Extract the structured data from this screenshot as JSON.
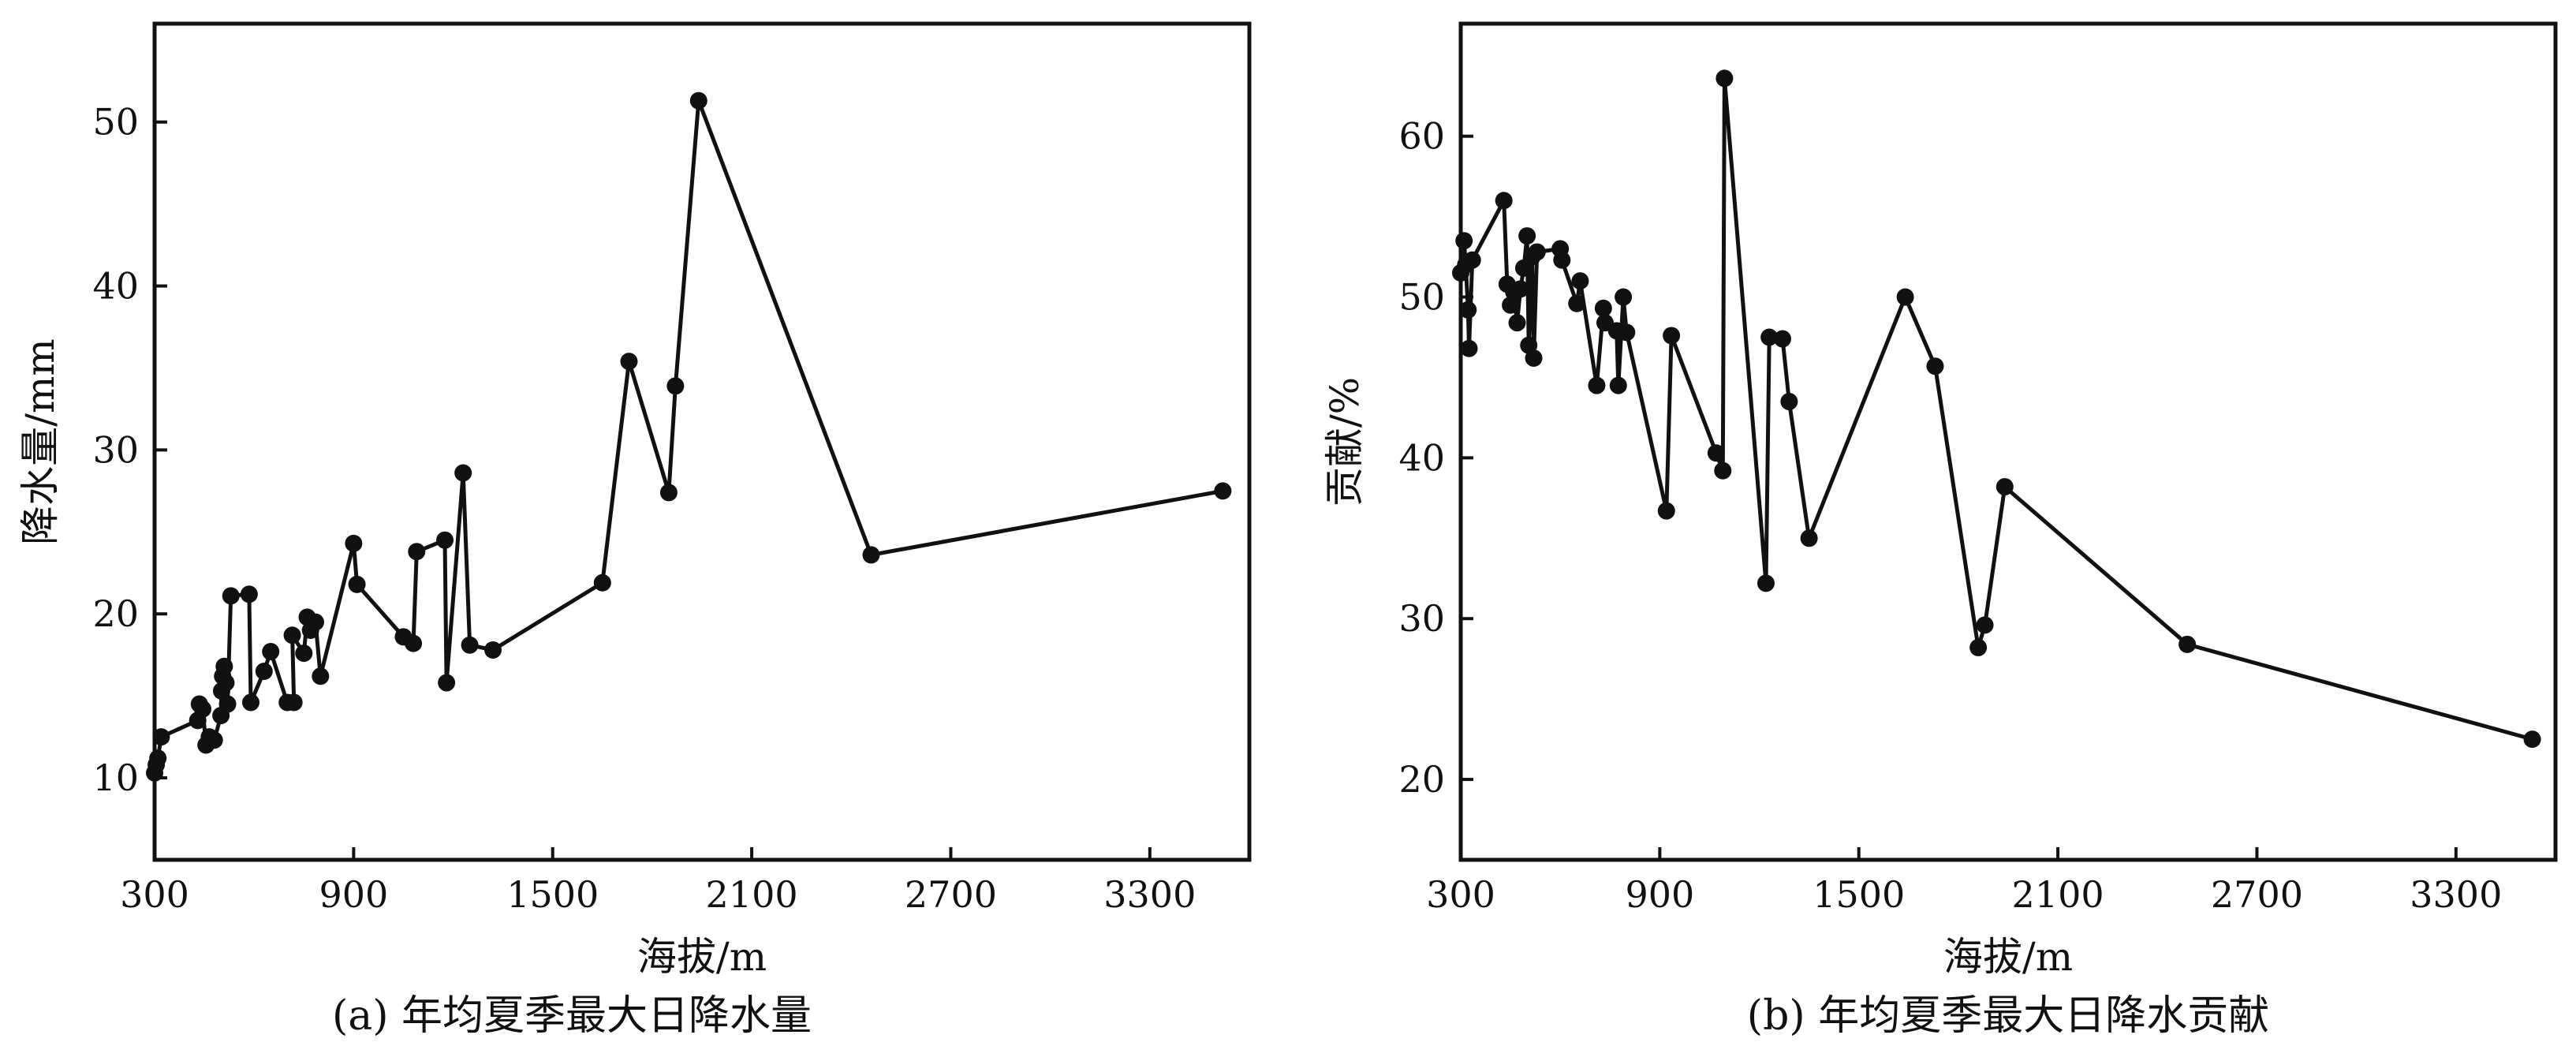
{
  "chart_data": [
    {
      "type": "line",
      "title": "",
      "caption": "(a) 年均夏季最大日降水量",
      "xlabel": "海拔/m",
      "ylabel": "降水量/mm",
      "xlim": [
        300,
        3600
      ],
      "ylim": [
        5,
        56
      ],
      "xticks": [
        300,
        900,
        1500,
        2100,
        2700,
        3300
      ],
      "yticks": [
        10,
        20,
        30,
        40,
        50
      ],
      "grid": false,
      "series": [
        {
          "points": [
            [
              300,
              10.3
            ],
            [
              305,
              10.8
            ],
            [
              310,
              11.2
            ],
            [
              320,
              12.5
            ],
            [
              430,
              13.5
            ],
            [
              435,
              14.5
            ],
            [
              445,
              14.2
            ],
            [
              455,
              12.0
            ],
            [
              465,
              12.5
            ],
            [
              480,
              12.3
            ],
            [
              500,
              13.8
            ],
            [
              502,
              15.3
            ],
            [
              505,
              16.2
            ],
            [
              510,
              16.8
            ],
            [
              515,
              15.8
            ],
            [
              520,
              14.5
            ],
            [
              530,
              21.1
            ],
            [
              585,
              21.2
            ],
            [
              590,
              14.6
            ],
            [
              630,
              16.5
            ],
            [
              650,
              17.7
            ],
            [
              700,
              14.6
            ],
            [
              720,
              14.6
            ],
            [
              715,
              18.7
            ],
            [
              750,
              17.6
            ],
            [
              760,
              19.8
            ],
            [
              770,
              19.0
            ],
            [
              785,
              19.5
            ],
            [
              800,
              16.2
            ],
            [
              900,
              24.3
            ],
            [
              910,
              21.8
            ],
            [
              1050,
              18.6
            ],
            [
              1080,
              18.2
            ],
            [
              1090,
              23.8
            ],
            [
              1175,
              24.5
            ],
            [
              1180,
              15.8
            ],
            [
              1230,
              28.6
            ],
            [
              1250,
              18.1
            ],
            [
              1320,
              17.8
            ],
            [
              1650,
              21.9
            ],
            [
              1730,
              35.4
            ],
            [
              1850,
              27.4
            ],
            [
              1870,
              33.9
            ],
            [
              1940,
              51.3
            ],
            [
              2460,
              23.6
            ],
            [
              3520,
              27.5
            ]
          ]
        }
      ]
    },
    {
      "type": "line",
      "title": "",
      "caption": "(b) 年均夏季最大日降水贡献",
      "xlabel": "海拔/m",
      "ylabel": "贡献/%",
      "xlim": [
        300,
        3600
      ],
      "ylim": [
        15,
        67
      ],
      "xticks": [
        300,
        900,
        1500,
        2100,
        2700,
        3300
      ],
      "yticks": [
        20,
        30,
        40,
        50,
        60
      ],
      "grid": false,
      "series": [
        {
          "points": [
            [
              300,
              51.5
            ],
            [
              310,
              53.5
            ],
            [
              315,
              52.0
            ],
            [
              322,
              49.2
            ],
            [
              325,
              46.8
            ],
            [
              335,
              52.3
            ],
            [
              430,
              56.0
            ],
            [
              440,
              50.8
            ],
            [
              450,
              49.5
            ],
            [
              460,
              50.3
            ],
            [
              470,
              48.4
            ],
            [
              480,
              50.5
            ],
            [
              490,
              51.8
            ],
            [
              500,
              53.8
            ],
            [
              505,
              47.0
            ],
            [
              515,
              52.5
            ],
            [
              520,
              46.2
            ],
            [
              530,
              52.8
            ],
            [
              600,
              53.0
            ],
            [
              605,
              52.3
            ],
            [
              650,
              49.6
            ],
            [
              660,
              51.0
            ],
            [
              710,
              44.5
            ],
            [
              730,
              49.3
            ],
            [
              735,
              48.4
            ],
            [
              770,
              47.9
            ],
            [
              775,
              44.5
            ],
            [
              790,
              50.0
            ],
            [
              800,
              47.8
            ],
            [
              920,
              36.7
            ],
            [
              935,
              47.6
            ],
            [
              1070,
              40.3
            ],
            [
              1090,
              39.2
            ],
            [
              1095,
              63.6
            ],
            [
              1220,
              32.2
            ],
            [
              1230,
              47.5
            ],
            [
              1270,
              47.4
            ],
            [
              1290,
              43.5
            ],
            [
              1350,
              35.0
            ],
            [
              1640,
              50.0
            ],
            [
              1730,
              45.7
            ],
            [
              1860,
              28.2
            ],
            [
              1880,
              29.6
            ],
            [
              1940,
              38.2
            ],
            [
              2490,
              28.4
            ],
            [
              3530,
              22.5
            ]
          ]
        }
      ]
    }
  ]
}
